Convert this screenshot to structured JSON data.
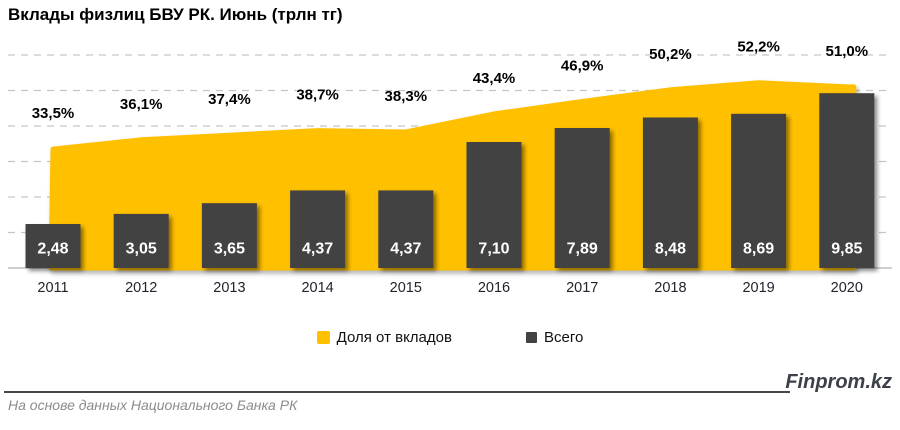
{
  "title": "Вклады физлиц БВУ РК. Июнь (трлн тг)",
  "chart_data": {
    "type": "combo",
    "title": "Вклады физлиц БВУ РК. Июнь (трлн тг)",
    "categories": [
      "2011",
      "2012",
      "2013",
      "2014",
      "2015",
      "2016",
      "2017",
      "2018",
      "2019",
      "2020"
    ],
    "series": [
      {
        "name": "Доля от вкладов",
        "chart_type": "area",
        "unit": "%",
        "values": [
          33.5,
          36.1,
          37.4,
          38.7,
          38.3,
          43.4,
          46.9,
          50.2,
          52.2,
          51.0
        ],
        "labels": [
          "33,5%",
          "36,1%",
          "37,4%",
          "38,7%",
          "38,3%",
          "43,4%",
          "46,9%",
          "50,2%",
          "52,2%",
          "51,0%"
        ],
        "color": "#FFC000",
        "axis_range": [
          0,
          60
        ]
      },
      {
        "name": "Всего",
        "chart_type": "bar",
        "unit": "трлн тг",
        "values": [
          2.48,
          3.05,
          3.65,
          4.37,
          4.37,
          7.1,
          7.89,
          8.48,
          8.69,
          9.85
        ],
        "labels": [
          "2,48",
          "3,05",
          "3,65",
          "4,37",
          "4,37",
          "7,10",
          "7,89",
          "8,48",
          "8,69",
          "9,85"
        ],
        "color": "#424242",
        "axis_range": [
          0,
          12
        ]
      }
    ],
    "grid": "horizontal-dashed",
    "legend_position": "bottom",
    "axes_labels_hidden": true
  },
  "legend": {
    "items": [
      {
        "label": "Доля от вкладов",
        "color": "#FFC000"
      },
      {
        "label": "Всего",
        "color": "#424242"
      }
    ]
  },
  "footer": {
    "brand": "Finprom.kz",
    "source": "На основе данных Национального Банка РК"
  },
  "colors": {
    "area": "#FFC000",
    "bar": "#424242",
    "grid": "#c6c6c6",
    "axis": "#b4b4b4"
  }
}
